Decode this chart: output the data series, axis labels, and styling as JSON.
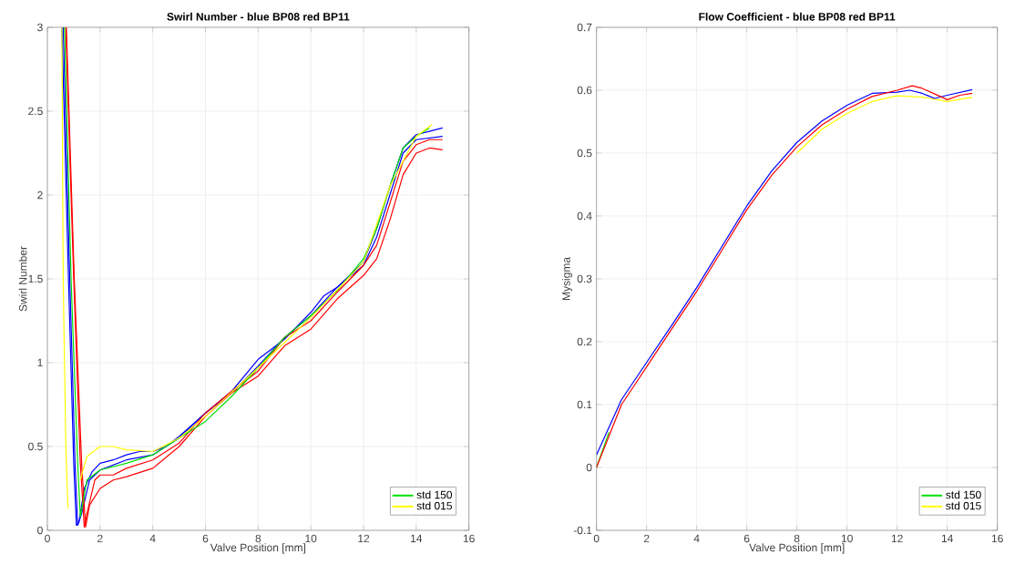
{
  "chart_data": [
    {
      "type": "line",
      "title": "Swirl Number - blue BP08 red BP11",
      "xlabel": "Valve Position [mm]",
      "ylabel": "Swirl Number",
      "xlim": [
        0,
        16
      ],
      "ylim": [
        0,
        3
      ],
      "xticks": [
        0,
        2,
        4,
        6,
        8,
        10,
        12,
        14,
        16
      ],
      "yticks": [
        0,
        0.5,
        1,
        1.5,
        2,
        2.5,
        3
      ],
      "grid": true,
      "legend": "bottom right",
      "series": [
        {
          "color": "#0000ff",
          "x": [
            0.55,
            0.8,
            1.0,
            1.1,
            1.2,
            1.4,
            1.7,
            2,
            2.5,
            3,
            3.5,
            4,
            4.5,
            5,
            6,
            7,
            8,
            9,
            10,
            11,
            12,
            12.5,
            13,
            13.5,
            14,
            14.5,
            15
          ],
          "values": [
            3,
            1.5,
            0.4,
            0.03,
            0.05,
            0.25,
            0.35,
            0.4,
            0.42,
            0.45,
            0.47,
            0.47,
            0.5,
            0.56,
            0.7,
            0.82,
            0.98,
            1.15,
            1.28,
            1.45,
            1.6,
            1.8,
            2.05,
            2.28,
            2.36,
            2.38,
            2.4
          ]
        },
        {
          "color": "#0000ff",
          "x": [
            0.6,
            0.85,
            1.05,
            1.15,
            1.3,
            1.6,
            2,
            3,
            4,
            5,
            6,
            7,
            8,
            9,
            10,
            10.5,
            11,
            12,
            12.5,
            13,
            13.5,
            14,
            15
          ],
          "values": [
            3,
            1.5,
            0.4,
            0.03,
            0.1,
            0.3,
            0.36,
            0.42,
            0.45,
            0.55,
            0.7,
            0.83,
            1.02,
            1.14,
            1.3,
            1.4,
            1.45,
            1.58,
            1.75,
            2.0,
            2.25,
            2.33,
            2.35
          ]
        },
        {
          "color": "#ff0000",
          "x": [
            0.7,
            1.0,
            1.25,
            1.4,
            1.5,
            1.8,
            2,
            2.5,
            3,
            4,
            5,
            6,
            7,
            8,
            9,
            10,
            11,
            12,
            12.5,
            13,
            13.5,
            14,
            14.5,
            15
          ],
          "values": [
            3,
            1.5,
            0.4,
            0.02,
            0.1,
            0.3,
            0.33,
            0.33,
            0.37,
            0.42,
            0.52,
            0.7,
            0.83,
            0.95,
            1.15,
            1.25,
            1.42,
            1.58,
            1.7,
            1.95,
            2.2,
            2.3,
            2.33,
            2.33
          ]
        },
        {
          "color": "#ff0000",
          "x": [
            0.72,
            1.02,
            1.3,
            1.45,
            1.6,
            2,
            2.5,
            3,
            4,
            5,
            6,
            7,
            8,
            9,
            10,
            11,
            12,
            12.5,
            13,
            13.5,
            14,
            14.5,
            15
          ],
          "values": [
            3,
            1.5,
            0.4,
            0.02,
            0.15,
            0.25,
            0.3,
            0.32,
            0.37,
            0.5,
            0.68,
            0.82,
            0.92,
            1.1,
            1.2,
            1.38,
            1.52,
            1.62,
            1.85,
            2.12,
            2.25,
            2.28,
            2.27
          ]
        },
        {
          "name": "std 150",
          "color": "#00e000",
          "x": [
            0.65,
            0.9,
            1.15,
            1.25,
            1.5,
            2,
            3,
            4,
            5,
            6,
            7,
            8,
            9,
            10,
            11,
            12,
            12.5,
            13,
            13.5,
            14,
            14.5
          ],
          "values": [
            3,
            1.5,
            0.4,
            0.08,
            0.3,
            0.36,
            0.4,
            0.45,
            0.55,
            0.65,
            0.8,
            0.97,
            1.15,
            1.28,
            1.43,
            1.62,
            1.8,
            2.05,
            2.28,
            2.35,
            2.4
          ]
        },
        {
          "name": "std 015",
          "color": "#ffff00",
          "x": [
            0.55,
            0.6,
            0.7,
            0.78,
            1.0,
            1.25,
            1.5,
            2,
            2.5,
            3,
            4,
            5,
            6,
            8,
            10,
            12,
            13,
            14,
            14.6
          ],
          "values": [
            3,
            1.5,
            0.5,
            0.13,
            null,
            0.3,
            0.44,
            0.5,
            0.5,
            0.48,
            0.47,
            0.55,
            0.68,
            0.97,
            1.27,
            1.6,
            2.05,
            2.35,
            2.42
          ]
        }
      ]
    },
    {
      "type": "line",
      "title": "Flow Coefficient - blue BP08 red BP11",
      "xlabel": "Valve Position [mm]",
      "ylabel": "Mysigma",
      "xlim": [
        0,
        16
      ],
      "ylim": [
        -0.1,
        0.7
      ],
      "xticks": [
        0,
        2,
        4,
        6,
        8,
        10,
        12,
        14,
        16
      ],
      "yticks": [
        -0.1,
        0,
        0.1,
        0.2,
        0.3,
        0.4,
        0.5,
        0.6,
        0.7
      ],
      "grid": true,
      "legend": "bottom right",
      "series": [
        {
          "name": "std 150",
          "color": "#00e000",
          "x": [
            0,
            0.5
          ],
          "values": [
            0,
            0.056
          ]
        },
        {
          "name": "std 015",
          "color": "#ffff00",
          "x": [
            8,
            9,
            10,
            11,
            12,
            13,
            14,
            15
          ],
          "values": [
            0.5,
            0.538,
            0.563,
            0.582,
            0.591,
            0.589,
            0.582,
            0.589
          ]
        },
        {
          "color": "#0000ff",
          "x": [
            0,
            1,
            2,
            3,
            4,
            5,
            6,
            7,
            8,
            9,
            10,
            11,
            12,
            12.5,
            13,
            13.5,
            14,
            15
          ],
          "values": [
            0.02,
            0.108,
            0.167,
            0.226,
            0.286,
            0.351,
            0.416,
            0.472,
            0.517,
            0.551,
            0.576,
            0.595,
            0.597,
            0.6,
            0.595,
            0.587,
            0.592,
            0.601
          ]
        },
        {
          "color": "#ff0000",
          "x": [
            0,
            1,
            2,
            3,
            4,
            5,
            6,
            7,
            8,
            9,
            10,
            11,
            12,
            12.6,
            13,
            13.5,
            14,
            14.5,
            15
          ],
          "values": [
            0,
            0.1,
            0.16,
            0.22,
            0.28,
            0.345,
            0.41,
            0.465,
            0.51,
            0.545,
            0.57,
            0.59,
            0.6,
            0.607,
            0.603,
            0.594,
            0.585,
            0.592,
            0.595
          ]
        }
      ]
    }
  ]
}
